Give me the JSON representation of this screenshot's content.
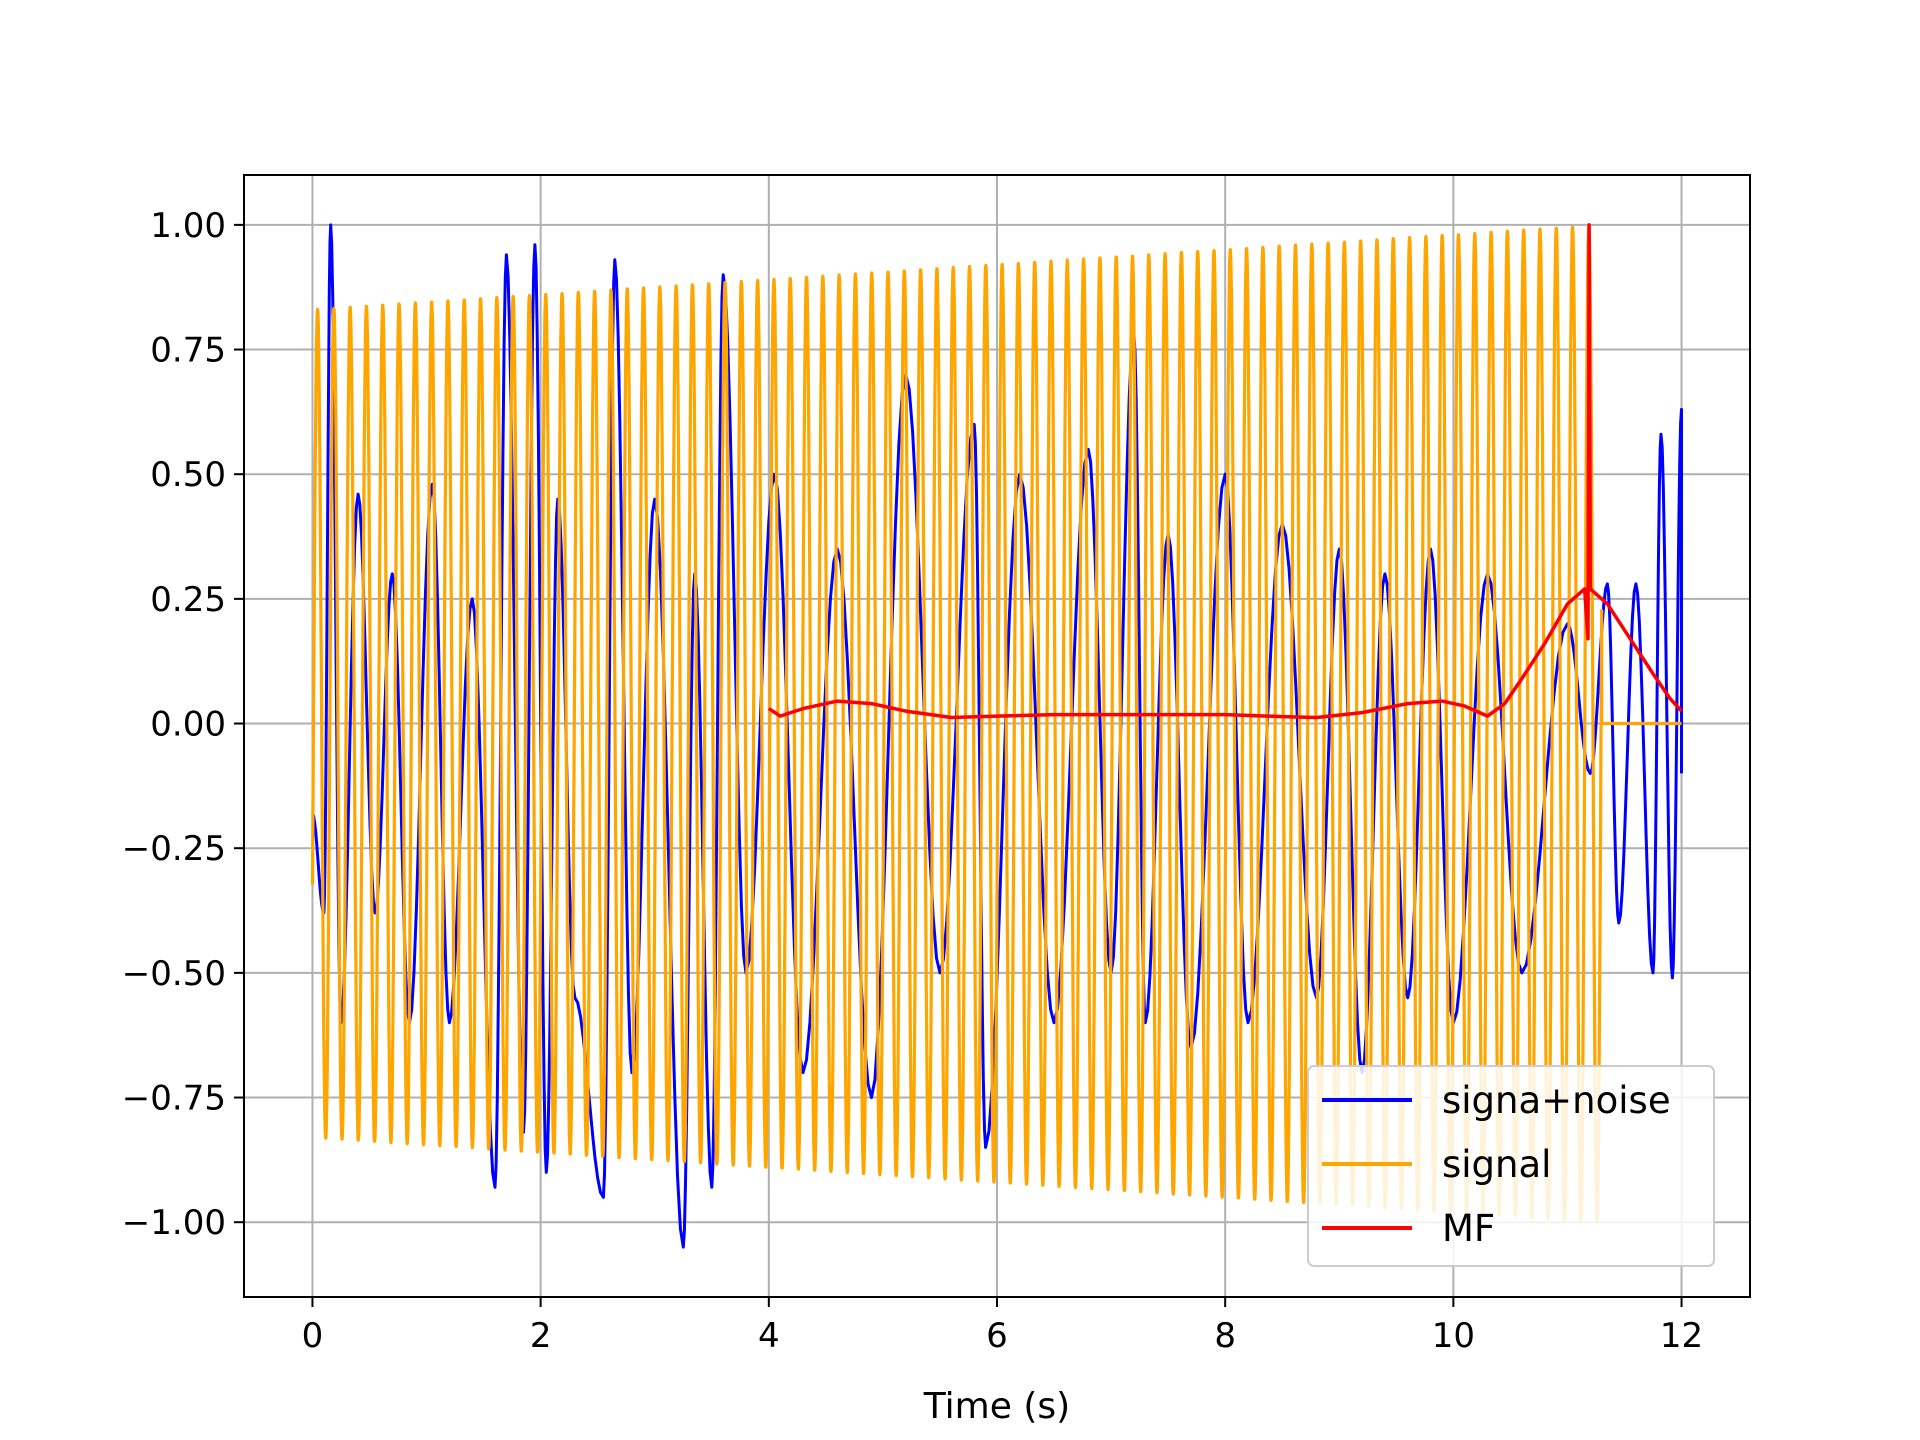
{
  "chart_data": {
    "type": "line",
    "title": "",
    "xlabel": "Time (s)",
    "ylabel": "",
    "xlim": [
      -0.6,
      12.6
    ],
    "ylim": [
      -1.15,
      1.1
    ],
    "xticks": [
      0,
      2,
      4,
      6,
      8,
      10,
      12
    ],
    "xtick_labels": [
      "0",
      "2",
      "4",
      "6",
      "8",
      "10",
      "12"
    ],
    "yticks": [
      1.0,
      0.75,
      0.5,
      0.25,
      0.0,
      -0.25,
      -0.5,
      -0.75,
      -1.0
    ],
    "ytick_labels": [
      "1.00",
      "0.75",
      "0.50",
      "0.25",
      "0.00",
      "−0.25",
      "−0.50",
      "−0.75",
      "−1.00"
    ],
    "grid": true,
    "legend_position": "lower-right",
    "series": [
      {
        "name": "signa+noise",
        "color": "#0000ff",
        "description_note": "",
        "t_range": [
          0,
          12
        ],
        "peaks": [
          [
            0.0,
            -0.18
          ],
          [
            0.1,
            -0.38
          ],
          [
            0.16,
            1.0
          ],
          [
            0.25,
            -0.6
          ],
          [
            0.4,
            0.46
          ],
          [
            0.55,
            -0.38
          ],
          [
            0.7,
            0.3
          ],
          [
            0.85,
            -0.6
          ],
          [
            1.05,
            0.48
          ],
          [
            1.2,
            -0.6
          ],
          [
            1.4,
            0.25
          ],
          [
            1.6,
            -0.93
          ],
          [
            1.7,
            0.94
          ],
          [
            1.85,
            -0.82
          ],
          [
            1.95,
            0.96
          ],
          [
            2.05,
            -0.9
          ],
          [
            2.15,
            0.45
          ],
          [
            2.3,
            -0.55
          ],
          [
            2.55,
            -0.95
          ],
          [
            2.65,
            0.93
          ],
          [
            2.8,
            -0.7
          ],
          [
            3.0,
            0.45
          ],
          [
            3.25,
            -1.05
          ],
          [
            3.35,
            0.3
          ],
          [
            3.5,
            -0.93
          ],
          [
            3.6,
            0.9
          ],
          [
            3.8,
            -0.5
          ],
          [
            4.05,
            0.5
          ],
          [
            4.3,
            -0.7
          ],
          [
            4.6,
            0.35
          ],
          [
            4.9,
            -0.75
          ],
          [
            5.2,
            0.7
          ],
          [
            5.5,
            -0.5
          ],
          [
            5.8,
            0.6
          ],
          [
            5.9,
            -0.85
          ],
          [
            6.2,
            0.5
          ],
          [
            6.5,
            -0.6
          ],
          [
            6.8,
            0.55
          ],
          [
            7.0,
            -0.5
          ],
          [
            7.2,
            0.78
          ],
          [
            7.3,
            -0.6
          ],
          [
            7.5,
            0.38
          ],
          [
            7.7,
            -0.65
          ],
          [
            8.0,
            0.5
          ],
          [
            8.2,
            -0.6
          ],
          [
            8.5,
            0.4
          ],
          [
            8.8,
            -0.55
          ],
          [
            9.0,
            0.35
          ],
          [
            9.2,
            -0.7
          ],
          [
            9.4,
            0.3
          ],
          [
            9.6,
            -0.55
          ],
          [
            9.8,
            0.35
          ],
          [
            10.0,
            -0.6
          ],
          [
            10.3,
            0.3
          ],
          [
            10.6,
            -0.5
          ],
          [
            11.0,
            0.2
          ],
          [
            11.2,
            -0.1
          ],
          [
            11.35,
            0.28
          ],
          [
            11.45,
            -0.4
          ],
          [
            11.6,
            0.28
          ],
          [
            11.75,
            -0.5
          ],
          [
            11.82,
            0.58
          ],
          [
            11.92,
            -0.51
          ],
          [
            12.0,
            0.63
          ],
          [
            12.0,
            -0.1
          ]
        ]
      },
      {
        "name": "signal",
        "color": "#ffa500",
        "t_range": [
          0,
          11.3
        ],
        "amplitude_range": [
          0.83,
          1.0
        ],
        "frequency_hz": 7,
        "after_end_value": 0.0,
        "after_end_range": [
          11.3,
          12.0
        ]
      },
      {
        "name": "MF",
        "color": "#ff0000",
        "points": [
          [
            4.0,
            0.03
          ],
          [
            4.1,
            0.015
          ],
          [
            4.3,
            0.03
          ],
          [
            4.6,
            0.045
          ],
          [
            4.9,
            0.04
          ],
          [
            5.2,
            0.025
          ],
          [
            5.6,
            0.012
          ],
          [
            6.0,
            0.015
          ],
          [
            6.5,
            0.018
          ],
          [
            7.0,
            0.018
          ],
          [
            7.5,
            0.018
          ],
          [
            8.0,
            0.018
          ],
          [
            8.5,
            0.014
          ],
          [
            8.8,
            0.012
          ],
          [
            9.2,
            0.022
          ],
          [
            9.6,
            0.04
          ],
          [
            9.9,
            0.045
          ],
          [
            10.1,
            0.035
          ],
          [
            10.3,
            0.015
          ],
          [
            10.45,
            0.04
          ],
          [
            10.6,
            0.09
          ],
          [
            10.8,
            0.16
          ],
          [
            11.0,
            0.24
          ],
          [
            11.15,
            0.27
          ],
          [
            11.18,
            0.17
          ],
          [
            11.19,
            1.0
          ],
          [
            11.2,
            0.27
          ],
          [
            11.35,
            0.24
          ],
          [
            11.55,
            0.17
          ],
          [
            11.75,
            0.1
          ],
          [
            11.9,
            0.05
          ],
          [
            12.0,
            0.025
          ]
        ]
      }
    ]
  }
}
